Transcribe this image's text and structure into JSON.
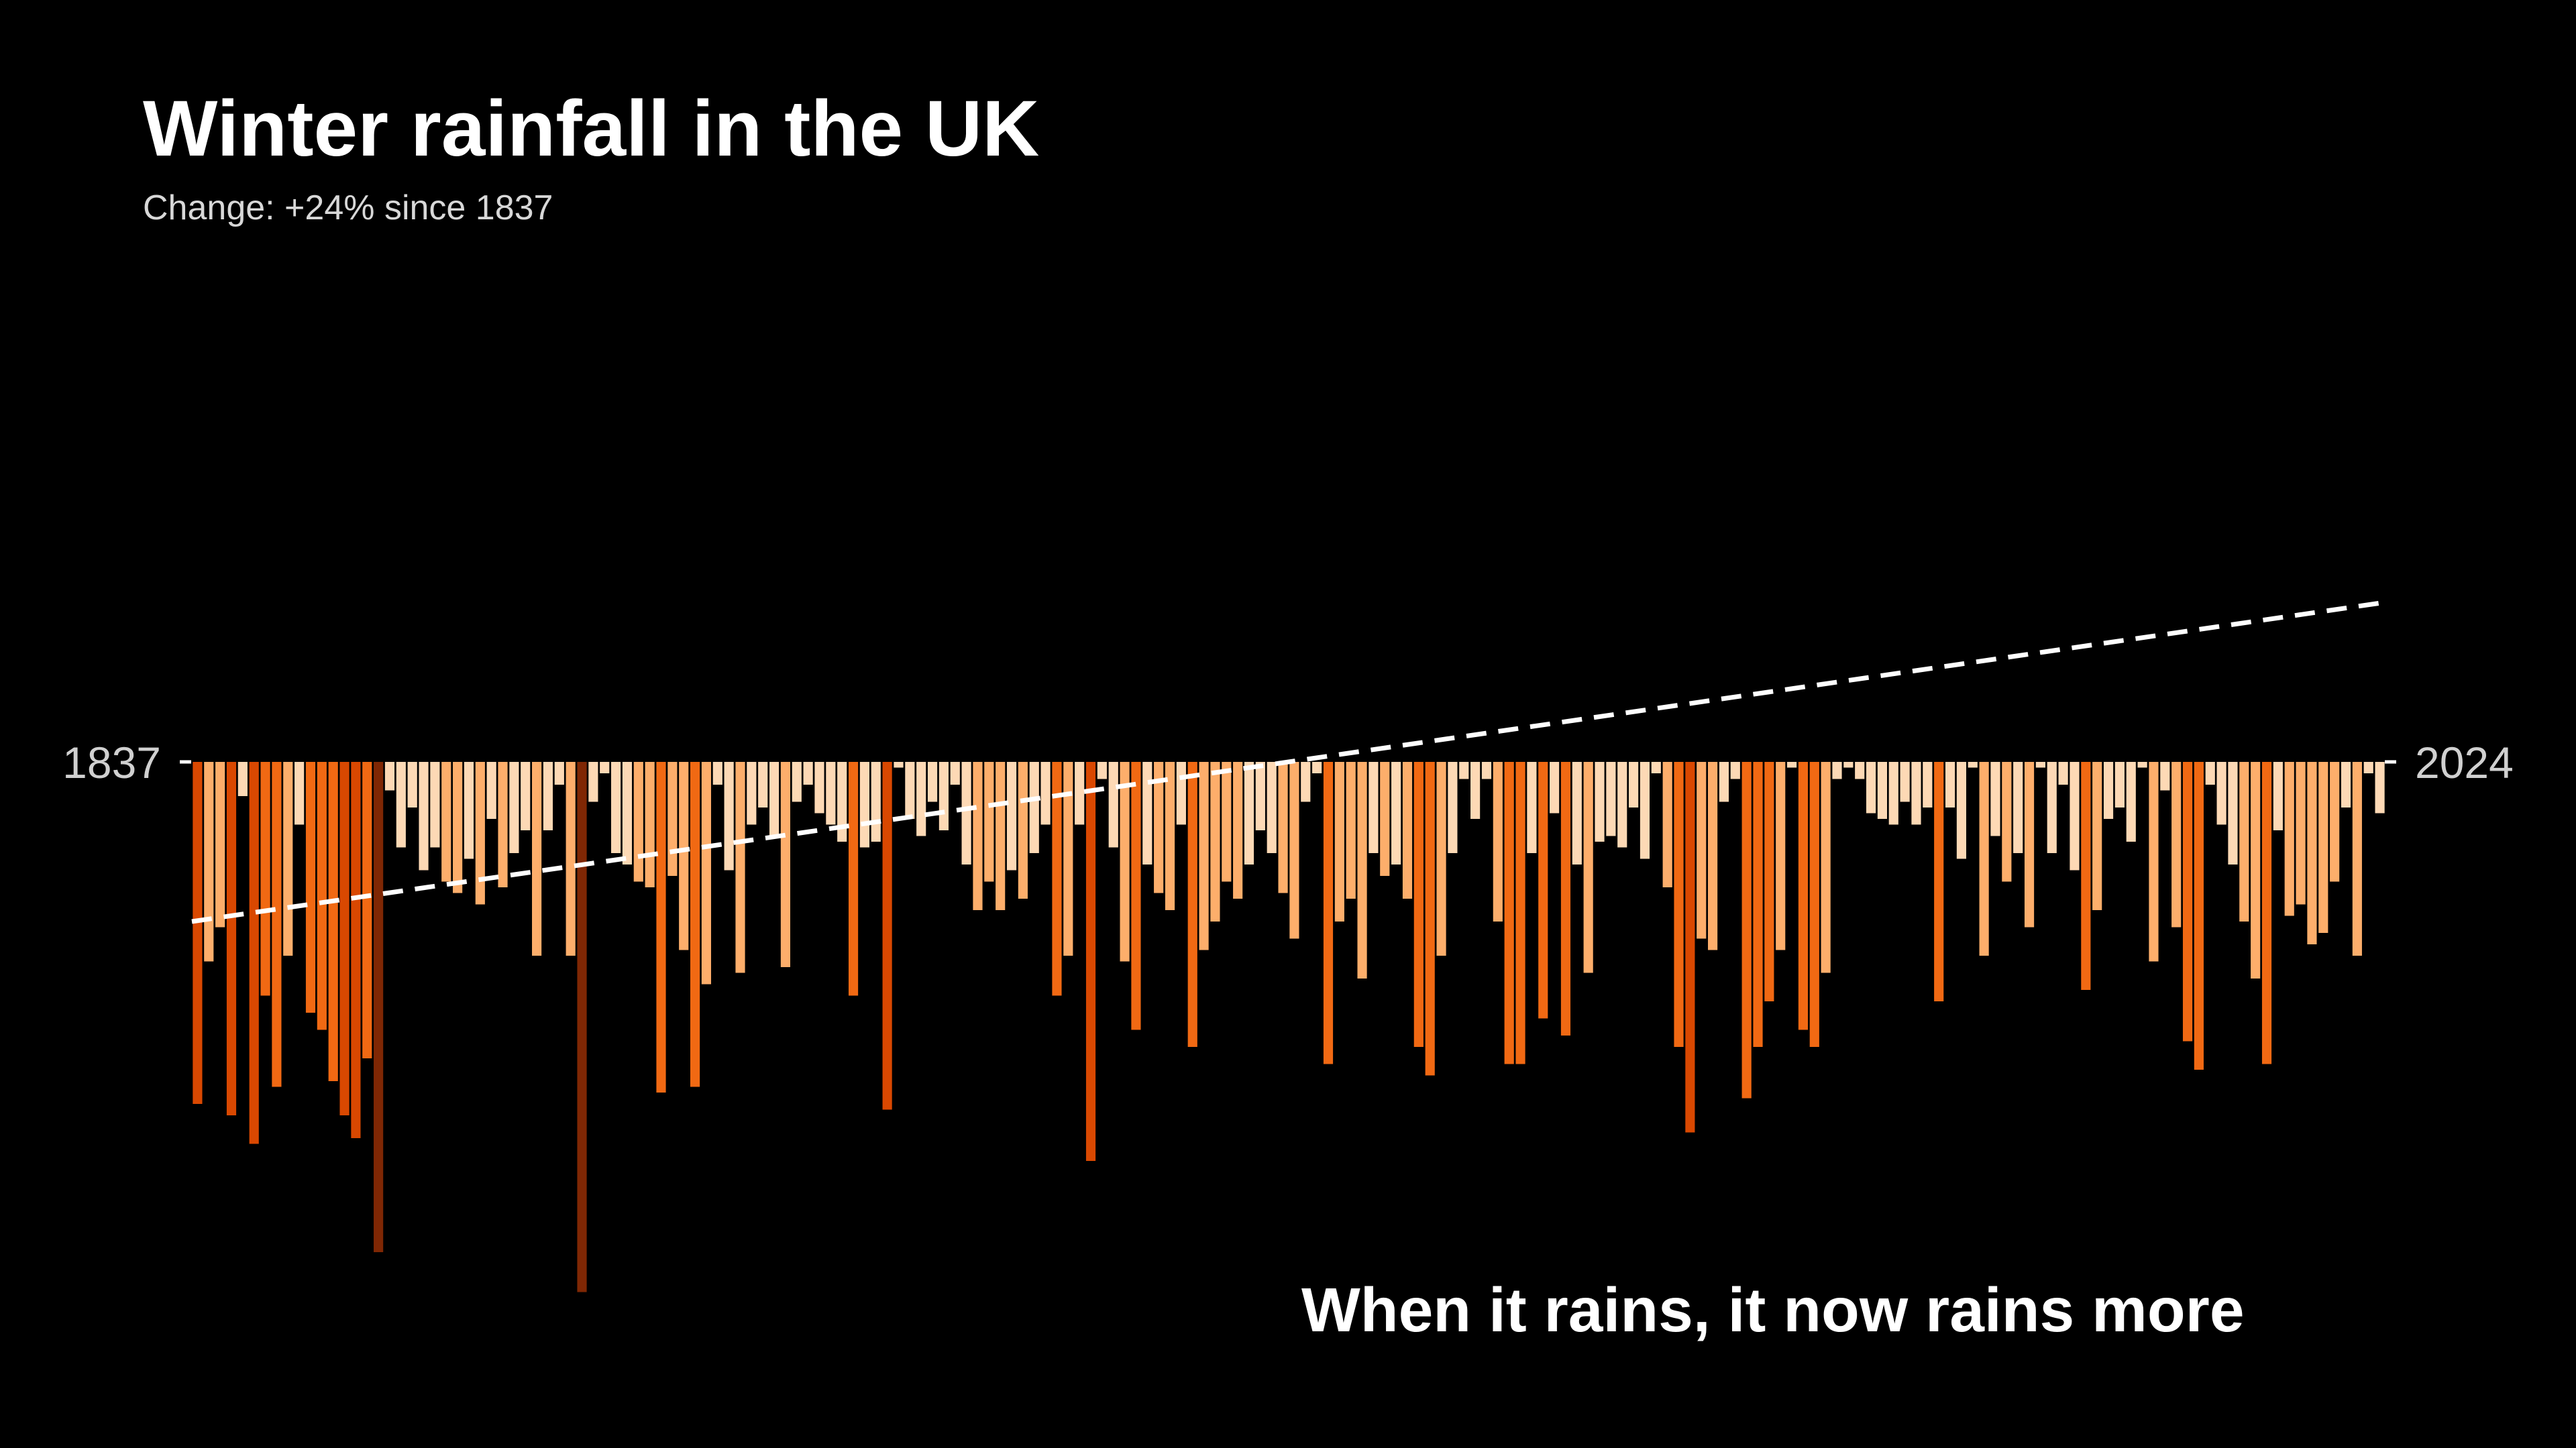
{
  "title": "Winter rainfall in the UK",
  "subtitle": "Change: +24% since 1837",
  "annotation": "When it rains, it now rains more",
  "chart_data": {
    "type": "bar",
    "title": "Winter rainfall in the UK",
    "subtitle": "Change: +24% since 1837",
    "start_year": 1837,
    "end_year": 2024,
    "x_labels": [
      "1837",
      "2024"
    ],
    "ylabel": "",
    "ylim": [
      -9.3,
      10.6
    ],
    "grid": false,
    "trend_line": {
      "start": -2.8,
      "end": 2.8,
      "style": "dashed",
      "color": "#ffffff"
    },
    "colors": {
      "wet_lightest": "#deebf7",
      "wet_light": "#bdd7ee",
      "wet_mid": "#6baed6",
      "wet_strong": "#2171b5",
      "wet_darkest": "#08306b",
      "dry_lightest": "#fdd9b5",
      "dry_light": "#fdae6b",
      "dry_mid": "#f16913",
      "dry_strong": "#d94801",
      "dry_darkest": "#7f2704"
    },
    "values": [
      -6.0,
      -3.5,
      -2.9,
      -6.2,
      -0.6,
      -6.7,
      -4.1,
      -5.7,
      -3.4,
      -1.1,
      -4.4,
      -4.7,
      -5.6,
      -6.2,
      -6.6,
      -5.2,
      -8.6,
      -0.5,
      -1.5,
      -0.8,
      -1.9,
      -1.5,
      -2.1,
      -2.3,
      -1.7,
      -2.5,
      -1.0,
      -2.2,
      -1.6,
      -1.2,
      -3.4,
      -1.2,
      -0.4,
      -3.4,
      -9.3,
      -0.7,
      -0.2,
      -1.6,
      -1.8,
      -2.1,
      -2.2,
      -5.8,
      -2.0,
      -3.3,
      -5.7,
      -3.9,
      -0.4,
      -1.9,
      -3.7,
      -1.1,
      -0.8,
      -1.3,
      -3.6,
      -0.7,
      -0.4,
      -0.9,
      -1.1,
      -1.4,
      -4.1,
      -1.5,
      -1.4,
      -6.1,
      -0.1,
      -1.0,
      -1.3,
      -0.7,
      -1.2,
      -0.4,
      -1.8,
      -2.6,
      -2.1,
      -2.6,
      -1.9,
      -2.4,
      -1.6,
      -1.1,
      -4.1,
      -3.4,
      -1.1,
      -7.0,
      -0.3,
      -1.5,
      -3.5,
      -4.7,
      -1.8,
      -2.3,
      -2.6,
      -1.1,
      -5.0,
      -3.3,
      -2.8,
      -2.1,
      -2.4,
      -1.8,
      -1.2,
      -1.6,
      -2.3,
      -3.1,
      -0.7,
      -0.2,
      -5.3,
      -2.8,
      -2.4,
      -3.8,
      -1.6,
      -2.0,
      -1.8,
      -2.4,
      -5.0,
      -5.5,
      -3.4,
      -1.6,
      -0.3,
      -1.0,
      -0.3,
      -2.8,
      -5.3,
      -5.3,
      -1.6,
      -4.5,
      -0.9,
      -4.8,
      -1.8,
      -3.7,
      -1.4,
      -1.3,
      -1.5,
      -0.8,
      -1.7,
      -0.2,
      -2.2,
      -5.0,
      -6.5,
      -3.1,
      -3.3,
      -0.7,
      -0.3,
      -5.9,
      -5.0,
      -4.2,
      -3.3,
      -0.1,
      -4.7,
      -5.0,
      -3.7,
      -0.3,
      -0.1,
      -0.3,
      -0.9,
      -1.0,
      -1.1,
      -0.7,
      -1.1,
      -0.8,
      -4.2,
      -0.8,
      -1.7,
      -0.1,
      -3.4,
      -1.3,
      -2.1,
      -1.6,
      -2.9,
      -0.1,
      -1.6,
      -0.4,
      -1.9,
      -4.0,
      -2.6,
      -1.0,
      -0.8,
      -1.4,
      -0.1,
      -3.5,
      -0.5,
      -2.9,
      -4.9,
      -5.4,
      -0.4,
      -1.1,
      -1.8,
      -2.8,
      -3.8,
      -5.3,
      -1.2,
      -2.7,
      -2.5,
      -3.2,
      -3.0,
      -2.1,
      -0.8,
      -3.4,
      -0.2,
      -0.9
    ]
  }
}
